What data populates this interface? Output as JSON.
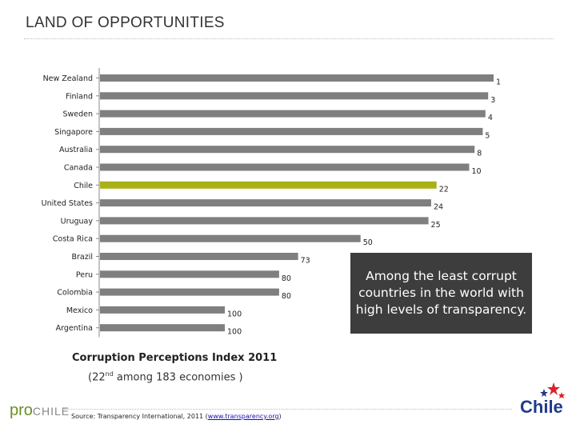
{
  "slide": {
    "title": "LAND OF OPPORTUNITIES",
    "callout": "Among the least corrupt countries in the world with high levels of transparency.",
    "caption_main": "Corruption Perceptions Index 2011",
    "caption_sub_prefix": "(22",
    "caption_sub_sup": "nd",
    "caption_sub_suffix": " among 183 economies )",
    "source_prefix": "Source:  Transparency International, 2011 (",
    "source_link": "www.transparency.org",
    "source_suffix": ")",
    "logo_left_pro": "pro",
    "logo_left_chile": "CHILE",
    "logo_right": "Chile"
  },
  "colors": {
    "bar": "#7f7f7f",
    "highlight": "#a8b216",
    "callout_bg": "#3d3d3d"
  },
  "chart_data": {
    "type": "bar",
    "orientation": "horizontal",
    "categories": [
      "New Zealand",
      "Finland",
      "Sweden",
      "Singapore",
      "Australia",
      "Canada",
      "Chile",
      "United States",
      "Uruguay",
      "Costa Rica",
      "Brazil",
      "Peru",
      "Colombia",
      "Mexico",
      "Argentina"
    ],
    "values": [
      1,
      3,
      4,
      5,
      8,
      10,
      22,
      24,
      25,
      50,
      73,
      80,
      80,
      100,
      100
    ],
    "highlight": "Chile",
    "title": "Corruption Perceptions Index 2011",
    "xlabel": "",
    "ylabel": "",
    "grid": false
  }
}
